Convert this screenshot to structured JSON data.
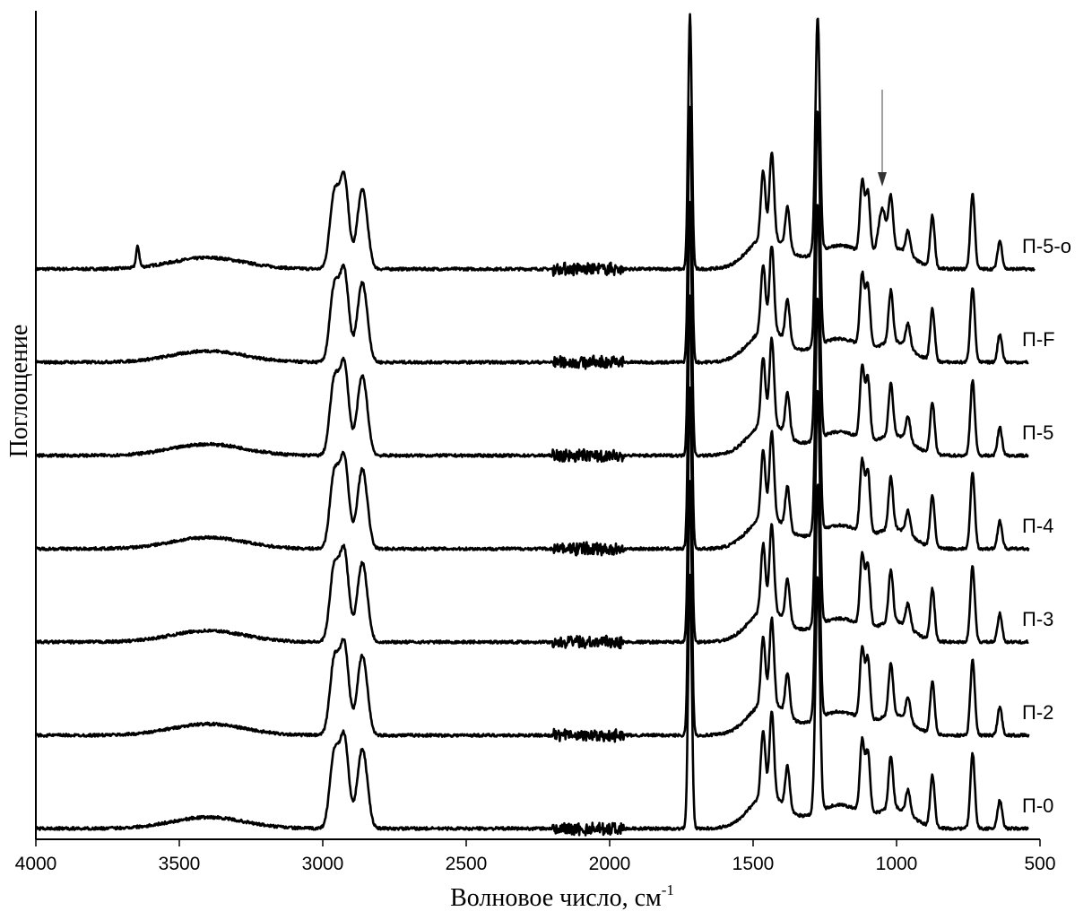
{
  "chart_data": {
    "type": "line",
    "xlabel": "Волновое число, см",
    "xlabel_superscript": "-1",
    "ylabel": "Поглощение",
    "xlim": [
      4000,
      500
    ],
    "x_reversed": true,
    "xticks": [
      4000,
      3500,
      3000,
      2500,
      2000,
      1500,
      1000,
      500
    ],
    "stacked_offsets": true,
    "line_color": "#000000",
    "annotation": {
      "type": "arrow",
      "x": 1050,
      "series": "П-5-о"
    },
    "series": [
      {
        "name": "П-5-о",
        "offset": 6,
        "x_end": 520,
        "features": {
          "oh_peak_3640": 0.22,
          "band_1050": 0.45
        }
      },
      {
        "name": "П-F",
        "offset": 5,
        "x_end": 540
      },
      {
        "name": "П-5",
        "offset": 4,
        "x_end": 540
      },
      {
        "name": "П-4",
        "offset": 3,
        "x_end": 540
      },
      {
        "name": "П-3",
        "offset": 2,
        "x_end": 540
      },
      {
        "name": "П-2",
        "offset": 1,
        "x_end": 540
      },
      {
        "name": "П-0",
        "offset": 0,
        "x_end": 540
      }
    ],
    "peaks": [
      {
        "x": 2960,
        "rel": 0.78
      },
      {
        "x": 2925,
        "rel": 0.95
      },
      {
        "x": 2870,
        "rel": 0.45
      },
      {
        "x": 2855,
        "rel": 0.5
      },
      {
        "x": 1720,
        "rel": 2.7
      },
      {
        "x": 1465,
        "rel": 0.7
      },
      {
        "x": 1435,
        "rel": 0.9
      },
      {
        "x": 1380,
        "rel": 0.45
      },
      {
        "x": 1275,
        "rel": 2.5
      },
      {
        "x": 1120,
        "rel": 0.75
      },
      {
        "x": 1100,
        "rel": 0.65
      },
      {
        "x": 1020,
        "rel": 0.55
      },
      {
        "x": 960,
        "rel": 0.25
      },
      {
        "x": 875,
        "rel": 0.55
      },
      {
        "x": 735,
        "rel": 0.8
      },
      {
        "x": 640,
        "rel": 0.3
      }
    ]
  }
}
